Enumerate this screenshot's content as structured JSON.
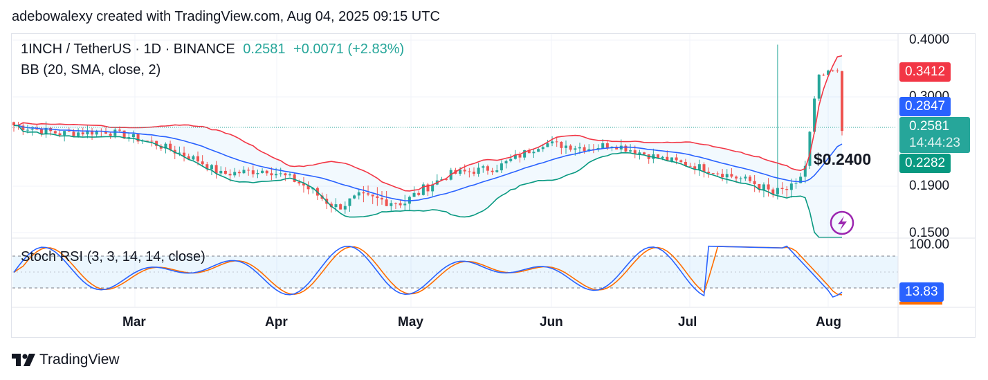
{
  "header": {
    "text": "adebowalexy created with TradingView.com, Aug 04, 2025 09:15 UTC"
  },
  "legend": {
    "symbol": "1INCH / TetherUS · 1D · BINANCE",
    "price": "0.2581",
    "change": "+0.0071 (+2.83%)",
    "bb": "BB (20, SMA, close, 2)",
    "stoch": "Stoch RSI (3, 3, 14, 14, close)"
  },
  "badges": {
    "upper": "0.3412",
    "basis": "0.2847",
    "price": "0.2581",
    "countdown": "14:44:23",
    "lower": "0.2282",
    "stoch": "13.83"
  },
  "annotation": "$0.2400",
  "footer": {
    "brand": "TradingView"
  },
  "colors": {
    "up": "#26a69a",
    "down": "#ef5350",
    "bb_upper": "#f23645",
    "bb_basis": "#2962ff",
    "bb_lower": "#089981",
    "bb_fill": "#2196f3",
    "stoch_k": "#2962ff",
    "stoch_d": "#ff6d00",
    "logo": "#9c27b0"
  },
  "chart_data": [
    {
      "type": "candlestick",
      "y_ticks": [
        "0.4000",
        "0.3000",
        "0.1900",
        "0.1500"
      ],
      "x_ticks": [
        "Mar",
        "Apr",
        "May",
        "Jun",
        "Jul",
        "Aug"
      ],
      "ylim": [
        0.145,
        0.41
      ],
      "grid": true,
      "series": [
        {
          "name": "1INCH / TetherUS",
          "x": [
            "2025-02-05",
            "2025-08-04"
          ],
          "close_points": [
            [
              0,
              0.265
            ],
            [
              10,
              0.255
            ],
            [
              20,
              0.258
            ],
            [
              30,
              0.244
            ],
            [
              40,
              0.222
            ],
            [
              45,
              0.205
            ],
            [
              55,
              0.21
            ],
            [
              60,
              0.2
            ],
            [
              65,
              0.185
            ],
            [
              70,
              0.172
            ],
            [
              75,
              0.18
            ],
            [
              85,
              0.176
            ],
            [
              95,
              0.205
            ],
            [
              105,
              0.213
            ],
            [
              115,
              0.243
            ],
            [
              125,
              0.237
            ],
            [
              130,
              0.242
            ],
            [
              140,
              0.225
            ],
            [
              150,
              0.212
            ],
            [
              160,
              0.196
            ],
            [
              165,
              0.183
            ],
            [
              170,
              0.19
            ],
            [
              172,
              0.215
            ],
            [
              175,
              0.335
            ],
            [
              178,
              0.345
            ],
            [
              182,
              0.333
            ],
            [
              186,
              0.31
            ],
            [
              190,
              0.275
            ],
            [
              192,
              0.268
            ],
            [
              195,
              0.235
            ],
            [
              197,
              0.258
            ]
          ]
        },
        {
          "name": "BB upper",
          "values_hint": "upper band"
        },
        {
          "name": "BB basis",
          "values_hint": "basis"
        },
        {
          "name": "BB lower",
          "values_hint": "lower band"
        }
      ]
    },
    {
      "type": "line",
      "ylim": [
        0,
        100
      ],
      "y_ticks": [
        "100.00"
      ],
      "levels": [
        80,
        20
      ],
      "series": [
        {
          "name": "K"
        },
        {
          "name": "D"
        }
      ]
    }
  ]
}
